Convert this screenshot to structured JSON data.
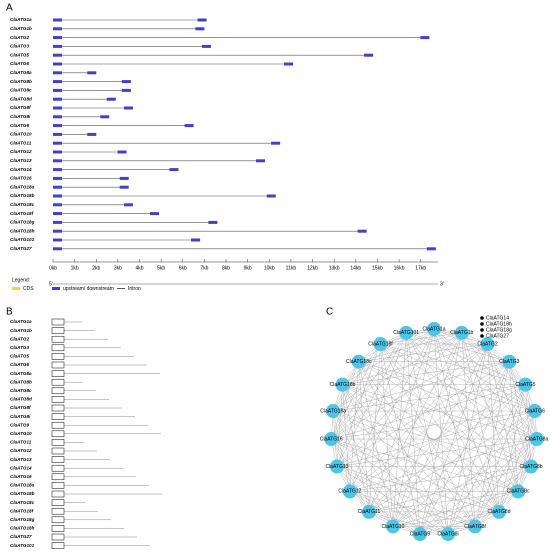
{
  "panels": [
    "A",
    "B",
    "C"
  ],
  "gene_structure": {
    "genes": [
      {
        "name": "ClaATG1a",
        "length": 7.1
      },
      {
        "name": "ClaATG1b",
        "length": 7.0
      },
      {
        "name": "ClaATG2",
        "length": 17.4
      },
      {
        "name": "ClaATG3",
        "length": 7.3
      },
      {
        "name": "ClaATG5",
        "length": 14.8
      },
      {
        "name": "ClaATG6",
        "length": 11.1
      },
      {
        "name": "ClaATG8a",
        "length": 2.0
      },
      {
        "name": "ClaATG8b",
        "length": 3.6
      },
      {
        "name": "ClaATG8c",
        "length": 3.6
      },
      {
        "name": "ClaATG8d",
        "length": 2.9
      },
      {
        "name": "ClaATG8f",
        "length": 3.7
      },
      {
        "name": "ClaATG8i",
        "length": 2.6
      },
      {
        "name": "ClaATG9",
        "length": 6.5
      },
      {
        "name": "ClaATG10",
        "length": 2.0
      },
      {
        "name": "ClaATG11",
        "length": 10.5
      },
      {
        "name": "ClaATG12",
        "length": 3.4
      },
      {
        "name": "ClaATG13",
        "length": 9.8
      },
      {
        "name": "ClaATG14",
        "length": 5.8
      },
      {
        "name": "ClaATG16",
        "length": 3.5
      },
      {
        "name": "ClaATG18a",
        "length": 3.5
      },
      {
        "name": "ClaATG18b",
        "length": 10.3
      },
      {
        "name": "ClaATG18c",
        "length": 3.7
      },
      {
        "name": "ClaATG18f",
        "length": 4.9
      },
      {
        "name": "ClaATG18g",
        "length": 7.6
      },
      {
        "name": "ClaATG18h",
        "length": 14.5
      },
      {
        "name": "ClaATG101",
        "length": 6.8
      },
      {
        "name": "ClaATG27",
        "length": 17.7
      }
    ],
    "xlim": [
      0,
      17.8
    ],
    "xticks": [
      {
        "value": 0,
        "label": "0kb"
      },
      {
        "value": 1,
        "label": "1kb"
      },
      {
        "value": 2,
        "label": "2kb"
      },
      {
        "value": 3,
        "label": "3kb"
      },
      {
        "value": 4,
        "label": "4kb"
      },
      {
        "value": 5,
        "label": "5kb"
      },
      {
        "value": 6,
        "label": "6kb"
      },
      {
        "value": 7,
        "label": "7kb"
      },
      {
        "value": 8,
        "label": "8kb"
      },
      {
        "value": 9,
        "label": "9kb"
      },
      {
        "value": 10,
        "label": "10kb"
      },
      {
        "value": 11,
        "label": "11kb"
      },
      {
        "value": 12,
        "label": "12kb"
      },
      {
        "value": 13,
        "label": "13kb"
      },
      {
        "value": 14,
        "label": "14kb"
      },
      {
        "value": 15,
        "label": "15kb"
      },
      {
        "value": 16,
        "label": "16kb"
      },
      {
        "value": 17,
        "label": "17kb"
      }
    ],
    "five_prime": "5'",
    "three_prime": "3'",
    "legend": {
      "title": "Legend:",
      "cds": "CDS",
      "utr": "upstream/ downstream",
      "intron": "Intron"
    }
  },
  "domains": {
    "genes": [
      "ClaATG1a",
      "ClaATG1b",
      "ClaATG2",
      "ClaATG3",
      "ClaATG5",
      "ClaATG6",
      "ClaATG8a",
      "ClaATG8b",
      "ClaATG8c",
      "ClaATG8d",
      "ClaATG8f",
      "ClaATG8i",
      "ClaATG9",
      "ClaATG10",
      "ClaATG11",
      "ClaATG12",
      "ClaATG13",
      "ClaATG14",
      "ClaATG16",
      "ClaATG18a",
      "ClaATG18b",
      "ClaATG18c",
      "ClaATG18f",
      "ClaATG18g",
      "ClaATG18h",
      "ClaATG27",
      "ClaATG101"
    ]
  },
  "network": {
    "legend": [
      "ClaATG14",
      "ClaATG18h",
      "ClaATG18g",
      "ClaATG27"
    ],
    "nodes": [
      "ClaATG1a",
      "ClaATG1b",
      "ClaATG2",
      "ClaATG3",
      "ClaATG5",
      "ClaATG6",
      "ClaATG8a",
      "ClaATG8b",
      "ClaATG8c",
      "ClaATG8d",
      "ClaATG8f",
      "ClaATG8i",
      "ClaATG9",
      "ClaATG10",
      "ClaATG11",
      "ClaATG12",
      "ClaATG13",
      "ClaATG16",
      "ClaATG18a",
      "ClaATG18b",
      "ClaATG18c",
      "ClaATG18f",
      "ClaATG101"
    ]
  }
}
